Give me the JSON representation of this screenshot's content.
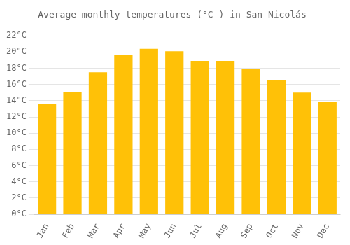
{
  "chart_data": {
    "type": "bar",
    "title": "Average monthly temperatures (°C ) in San Nicolás",
    "categories": [
      "Jan",
      "Feb",
      "Mar",
      "Apr",
      "May",
      "Jun",
      "Jul",
      "Aug",
      "Sep",
      "Oct",
      "Nov",
      "Dec"
    ],
    "values": [
      13.6,
      15.1,
      17.5,
      19.6,
      20.4,
      20.1,
      18.9,
      18.9,
      17.9,
      16.5,
      15.0,
      13.9
    ],
    "color": "#FFC107",
    "ylim": [
      0,
      23
    ],
    "yticks": [
      {
        "value": 0,
        "label": "0°C"
      },
      {
        "value": 2,
        "label": "2°C"
      },
      {
        "value": 4,
        "label": "4°C"
      },
      {
        "value": 6,
        "label": "6°C"
      },
      {
        "value": 8,
        "label": "8°C"
      },
      {
        "value": 10,
        "label": "10°C"
      },
      {
        "value": 12,
        "label": "12°C"
      },
      {
        "value": 14,
        "label": "14°C"
      },
      {
        "value": 16,
        "label": "16°C"
      },
      {
        "value": 18,
        "label": "18°C"
      },
      {
        "value": 20,
        "label": "20°C"
      },
      {
        "value": 22,
        "label": "22°C"
      }
    ],
    "grid": true
  }
}
